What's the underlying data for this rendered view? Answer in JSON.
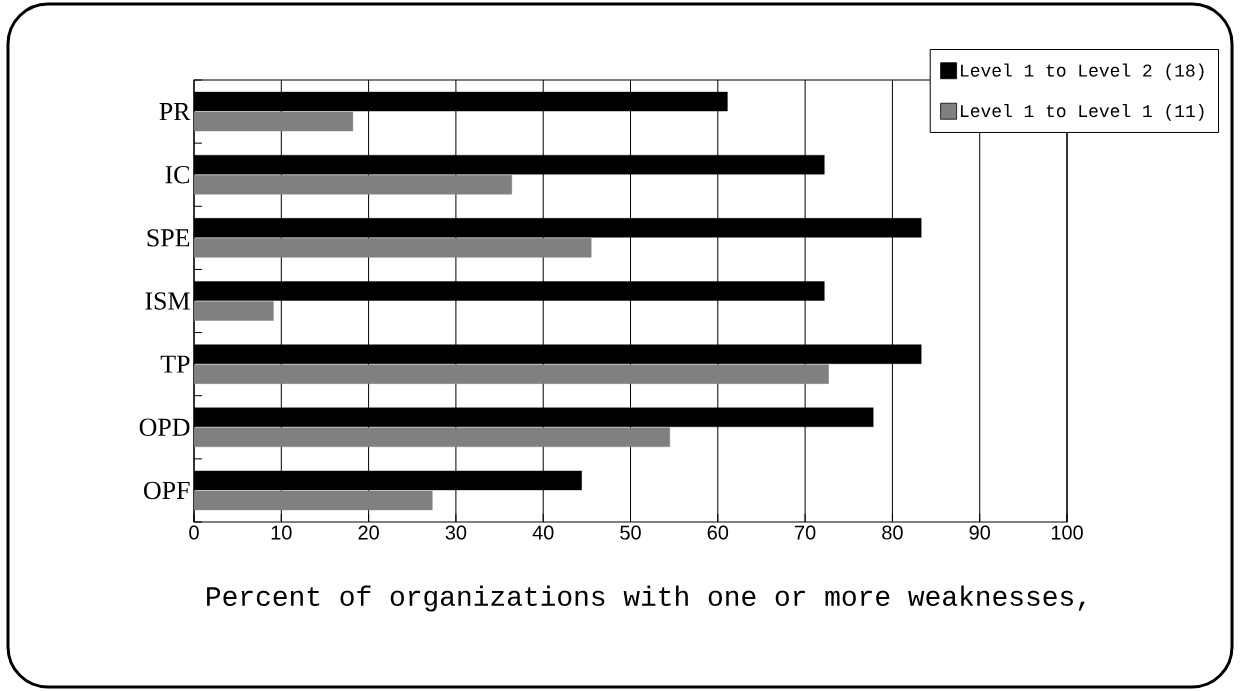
{
  "chart_data": {
    "type": "bar",
    "orientation": "horizontal",
    "xlabel": "Percent of organizations with one or more weaknesses,",
    "categories": [
      "PR",
      "IC",
      "SPE",
      "ISM",
      "TP",
      "OPD",
      "OPF"
    ],
    "series": [
      {
        "name": "Level 1 to Level 2 (18)",
        "color": "#000000",
        "values": [
          61.1,
          72.2,
          83.3,
          72.2,
          83.3,
          77.8,
          44.4
        ]
      },
      {
        "name": "Level 1 to Level 1 (11)",
        "color": "#808080",
        "values": [
          18.2,
          36.4,
          45.5,
          9.1,
          72.7,
          54.5,
          27.3
        ]
      }
    ],
    "xlim": [
      0,
      100
    ],
    "xticks": [
      0,
      10,
      20,
      30,
      40,
      50,
      60,
      70,
      80,
      90,
      100
    ],
    "grid": "x",
    "legend": "top right"
  }
}
